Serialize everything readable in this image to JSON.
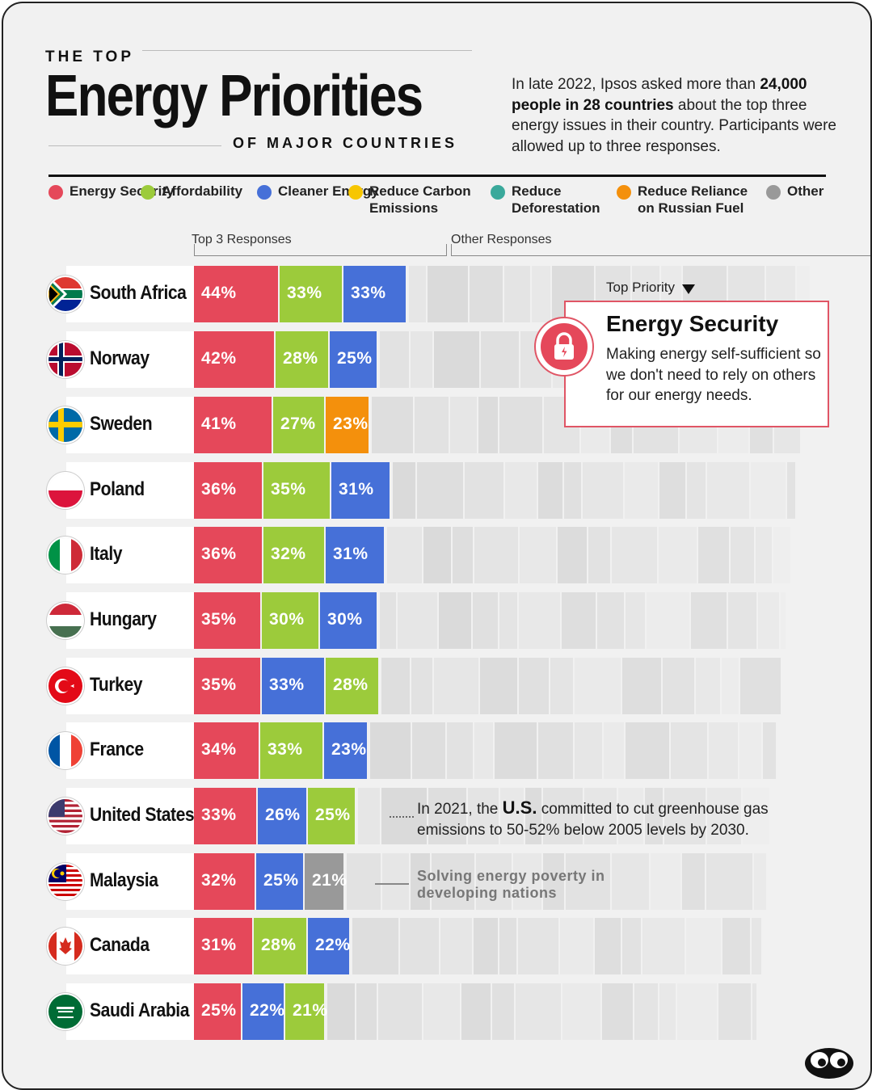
{
  "header": {
    "kicker": "THE TOP",
    "title": "Energy Priorities",
    "subtitle": "OF MAJOR COUNTRIES"
  },
  "intro": {
    "part1": "In late 2022, Ipsos asked more than ",
    "bold": "24,000 people in 28 countries",
    "part2": " about the top three energy issues in their country. Participants were allowed up to three responses."
  },
  "legend": [
    {
      "label": "Energy Security",
      "color": "#e5485a"
    },
    {
      "label": "Affordability",
      "color": "#9ccb3b"
    },
    {
      "label": "Cleaner Energy",
      "color": "#4670d8"
    },
    {
      "label": "Reduce Carbon Emissions",
      "color": "#f7c600"
    },
    {
      "label": "Reduce Deforestation",
      "color": "#3aa99b"
    },
    {
      "label": "Reduce Reliance on Russian Fuel",
      "color": "#f4900c"
    },
    {
      "label": "Other",
      "color": "#999999"
    }
  ],
  "ranges": {
    "top3": "Top 3 Responses",
    "other": "Other Responses"
  },
  "callout": {
    "top_priority_label": "Top Priority",
    "title": "Energy Security",
    "text": "Making energy self-sufficient so we don't need to rely on others for our energy needs.",
    "icon": "lock-icon"
  },
  "annotations": {
    "us_pre": "In 2021, the ",
    "us_bold": "U.S.",
    "us_post": " committed to cut greenhouse gas emissions to 50-52% below 2005 levels by 2030.",
    "malaysia": "Solving energy poverty in developing nations"
  },
  "chart_data": {
    "type": "bar",
    "orientation": "horizontal",
    "stacked": true,
    "categories": [
      "South Africa",
      "Norway",
      "Sweden",
      "Poland",
      "Italy",
      "Hungary",
      "Turkey",
      "France",
      "United States",
      "Malaysia",
      "Canada",
      "Saudi Arabia"
    ],
    "rows": [
      {
        "country": "South Africa",
        "flag": "za",
        "values": [
          {
            "series": "Energy Security",
            "value": 44
          },
          {
            "series": "Affordability",
            "value": 33
          },
          {
            "series": "Cleaner Energy",
            "value": 33
          }
        ]
      },
      {
        "country": "Norway",
        "flag": "no",
        "values": [
          {
            "series": "Energy Security",
            "value": 42
          },
          {
            "series": "Affordability",
            "value": 28
          },
          {
            "series": "Cleaner Energy",
            "value": 25
          }
        ]
      },
      {
        "country": "Sweden",
        "flag": "se",
        "values": [
          {
            "series": "Energy Security",
            "value": 41
          },
          {
            "series": "Affordability",
            "value": 27
          },
          {
            "series": "Reduce Reliance on Russian Fuel",
            "value": 23
          }
        ]
      },
      {
        "country": "Poland",
        "flag": "pl",
        "values": [
          {
            "series": "Energy Security",
            "value": 36
          },
          {
            "series": "Affordability",
            "value": 35
          },
          {
            "series": "Cleaner Energy",
            "value": 31
          }
        ]
      },
      {
        "country": "Italy",
        "flag": "it",
        "values": [
          {
            "series": "Energy Security",
            "value": 36
          },
          {
            "series": "Affordability",
            "value": 32
          },
          {
            "series": "Cleaner Energy",
            "value": 31
          }
        ]
      },
      {
        "country": "Hungary",
        "flag": "hu",
        "values": [
          {
            "series": "Energy Security",
            "value": 35
          },
          {
            "series": "Affordability",
            "value": 30
          },
          {
            "series": "Cleaner Energy",
            "value": 30
          }
        ]
      },
      {
        "country": "Turkey",
        "flag": "tr",
        "values": [
          {
            "series": "Energy Security",
            "value": 35
          },
          {
            "series": "Cleaner Energy",
            "value": 33
          },
          {
            "series": "Affordability",
            "value": 28
          }
        ]
      },
      {
        "country": "France",
        "flag": "fr",
        "values": [
          {
            "series": "Energy Security",
            "value": 34
          },
          {
            "series": "Affordability",
            "value": 33
          },
          {
            "series": "Cleaner Energy",
            "value": 23
          }
        ]
      },
      {
        "country": "United States",
        "flag": "us",
        "values": [
          {
            "series": "Energy Security",
            "value": 33
          },
          {
            "series": "Cleaner Energy",
            "value": 26
          },
          {
            "series": "Affordability",
            "value": 25
          }
        ]
      },
      {
        "country": "Malaysia",
        "flag": "my",
        "values": [
          {
            "series": "Energy Security",
            "value": 32
          },
          {
            "series": "Cleaner Energy",
            "value": 25
          },
          {
            "series": "Other",
            "value": 21
          }
        ]
      },
      {
        "country": "Canada",
        "flag": "ca",
        "values": [
          {
            "series": "Energy Security",
            "value": 31
          },
          {
            "series": "Affordability",
            "value": 28
          },
          {
            "series": "Cleaner Energy",
            "value": 22
          }
        ]
      },
      {
        "country": "Saudi Arabia",
        "flag": "sa",
        "values": [
          {
            "series": "Energy Security",
            "value": 25
          },
          {
            "series": "Cleaner Energy",
            "value": 22
          },
          {
            "series": "Affordability",
            "value": 21
          }
        ]
      }
    ]
  }
}
